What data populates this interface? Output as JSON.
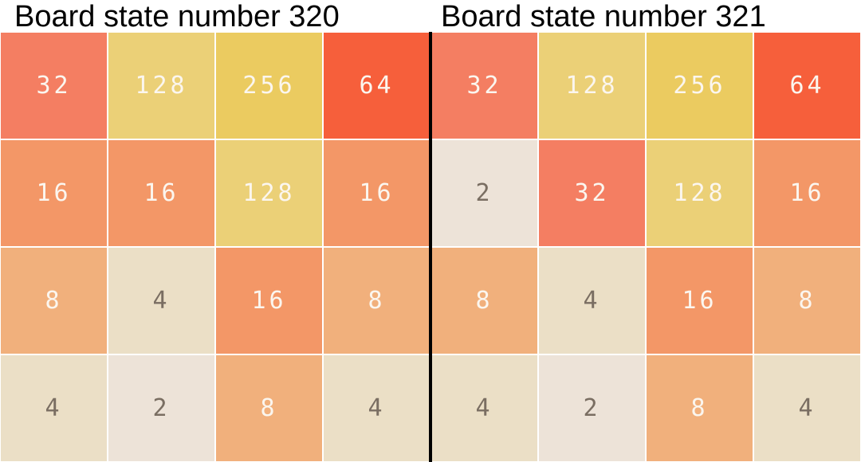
{
  "boards": [
    {
      "title": "Board state number 320",
      "grid": [
        [
          32,
          128,
          256,
          64
        ],
        [
          16,
          16,
          128,
          16
        ],
        [
          8,
          4,
          16,
          8
        ],
        [
          4,
          2,
          8,
          4
        ]
      ]
    },
    {
      "title": "Board state number 321",
      "grid": [
        [
          32,
          128,
          256,
          64
        ],
        [
          2,
          32,
          128,
          16
        ],
        [
          8,
          4,
          16,
          8
        ],
        [
          4,
          2,
          8,
          4
        ]
      ]
    }
  ],
  "tile_colors": {
    "2": {
      "bg": "#ede3d8",
      "fg": "#7a6e62"
    },
    "4": {
      "bg": "#ebdfc6",
      "fg": "#7a6e62"
    },
    "8": {
      "bg": "#f1b07c",
      "fg": "#fbf6ef"
    },
    "16": {
      "bg": "#f39767",
      "fg": "#fbf6ef"
    },
    "32": {
      "bg": "#f47e62",
      "fg": "#fbf6ef"
    },
    "64": {
      "bg": "#f65f3b",
      "fg": "#fbf6ef"
    },
    "128": {
      "bg": "#ebd077",
      "fg": "#fbf6ef"
    },
    "256": {
      "bg": "#ebcb60",
      "fg": "#fbf6ef"
    }
  },
  "divider_color": "#000000"
}
